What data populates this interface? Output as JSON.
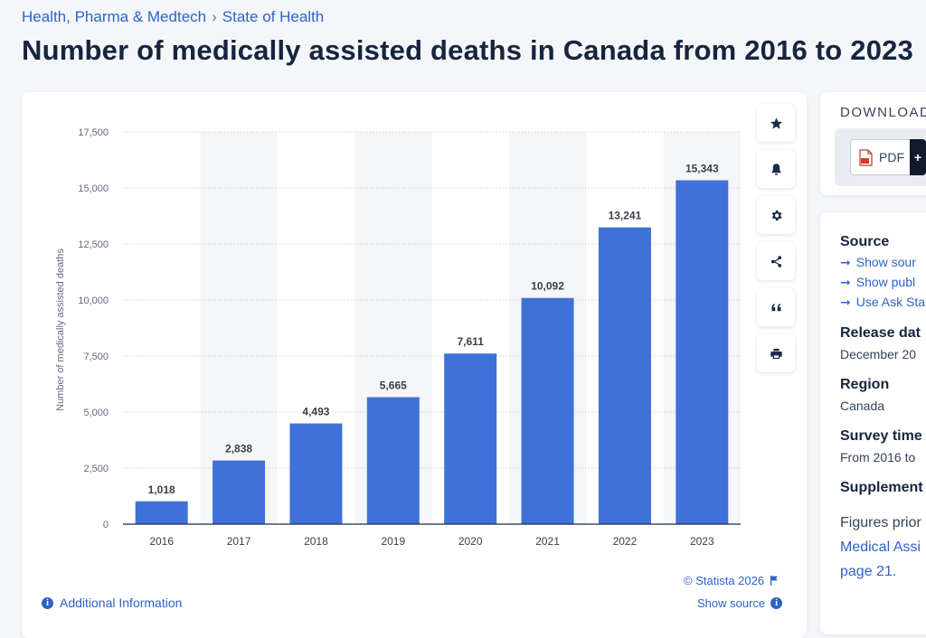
{
  "breadcrumb": {
    "category": "Health, Pharma & Medtech",
    "separator": "›",
    "topic": "State of Health"
  },
  "page_title": "Number of medically assisted deaths in Canada from 2016 to 2023",
  "tools": [
    "star-icon",
    "bell-icon",
    "gear-icon",
    "share-icon",
    "quote-icon",
    "print-icon"
  ],
  "footer": {
    "additional_info": "Additional Information",
    "copyright": "© Statista 2026",
    "show_source": "Show source"
  },
  "download": {
    "label": "DOWNLOAD",
    "pdf_label": "PDF",
    "plus": "+"
  },
  "info_panel": {
    "source_heading": "Source",
    "source_links": [
      "Show sour",
      "Show publ",
      "Use Ask Sta"
    ],
    "release_heading": "Release dat",
    "release_value": "December 20",
    "region_heading": "Region",
    "region_value": "Canada",
    "survey_heading": "Survey time",
    "survey_value": "From 2016 to",
    "supplement_heading": "Supplement",
    "supplement_text": "Figures prior",
    "supplement_link": "Medical Assi",
    "supplement_page": "page 21."
  },
  "colors": {
    "bar": "#3f72d8",
    "accent": "#2d63c8",
    "band": "#f5f6f8"
  },
  "chart_data": {
    "type": "bar",
    "categories": [
      "2016",
      "2017",
      "2018",
      "2019",
      "2020",
      "2021",
      "2022",
      "2023"
    ],
    "values": [
      1018,
      2838,
      4493,
      5665,
      7611,
      10092,
      13241,
      15343
    ],
    "value_labels": [
      "1,018",
      "2,838",
      "4,493",
      "5,665",
      "7,611",
      "10,092",
      "13,241",
      "15,343"
    ],
    "title": "",
    "xlabel": "",
    "ylabel": "Number of medically assisted deaths",
    "ylim": [
      0,
      17500
    ],
    "yticks": [
      0,
      2500,
      5000,
      7500,
      10000,
      12500,
      15000,
      17500
    ],
    "ytick_labels": [
      "0",
      "2,500",
      "5,000",
      "7,500",
      "10,000",
      "12,500",
      "15,000",
      "17,500"
    ],
    "grid": true,
    "legend": "none"
  }
}
